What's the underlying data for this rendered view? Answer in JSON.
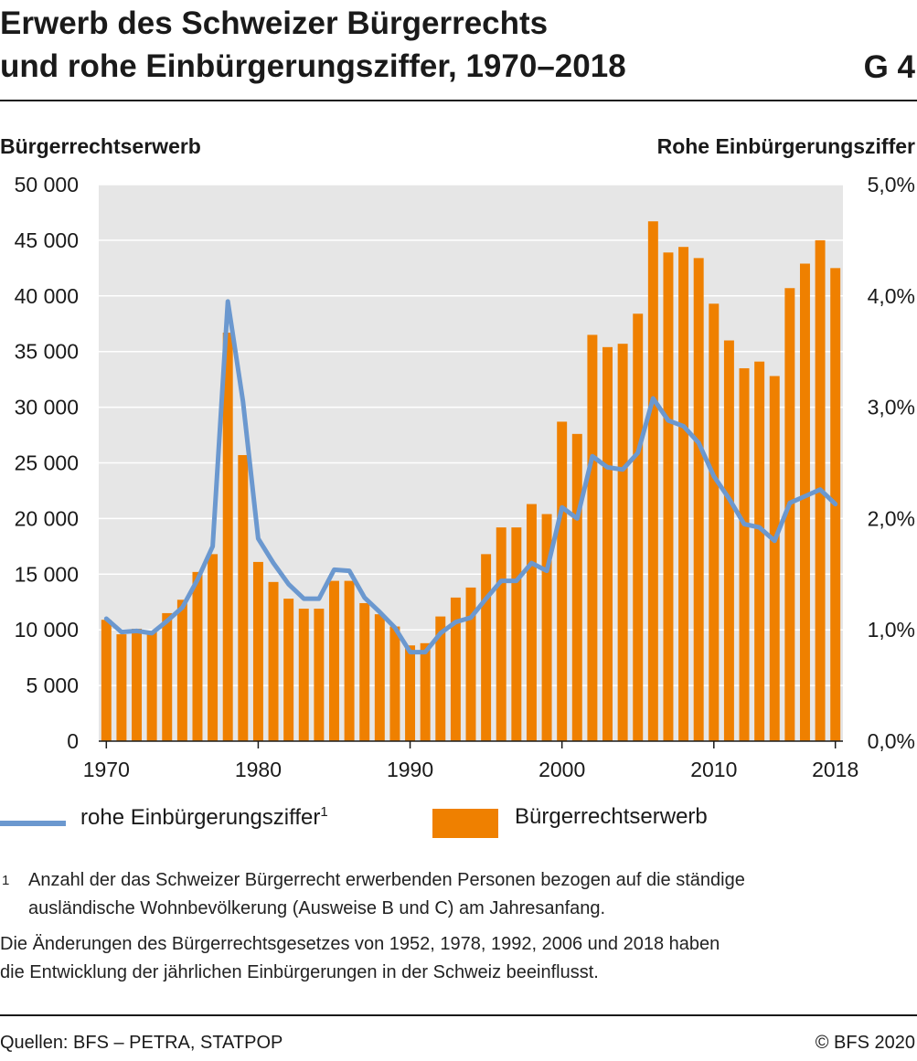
{
  "header": {
    "title_line1": "Erwerb des Schweizer Bürgerrechts",
    "title_line2": "und rohe Einbürgerungsziffer, 1970–2018",
    "graphic_number": "G 4"
  },
  "colors": {
    "bar": "#ef8000",
    "line": "#6b98cf",
    "plot_bg": "#e6e6e6",
    "grid": "#ffffff"
  },
  "chart_data": {
    "type": "bar",
    "title": "Erwerb des Schweizer Bürgerrechts und rohe Einbürgerungsziffer, 1970–2018",
    "ylabel": "Bürgerrechtserwerb",
    "y2label": "Rohe Einbürgerungsziffer",
    "ylim": [
      0,
      50000
    ],
    "y2lim": [
      0,
      5.0
    ],
    "y_ticks": [
      "0",
      "5 000",
      "10 000",
      "15 000",
      "20 000",
      "25 000",
      "30 000",
      "35 000",
      "40 000",
      "45 000",
      "50 000"
    ],
    "y2_ticks": [
      "0,0%",
      "1,0%",
      "2,0%",
      "3,0%",
      "4,0%",
      "5,0%"
    ],
    "x_ticks": [
      "1970",
      "1980",
      "1990",
      "2000",
      "2010",
      "2018"
    ],
    "grid": true,
    "x": [
      1970,
      1971,
      1972,
      1973,
      1974,
      1975,
      1976,
      1977,
      1978,
      1979,
      1980,
      1981,
      1982,
      1983,
      1984,
      1985,
      1986,
      1987,
      1988,
      1989,
      1990,
      1991,
      1992,
      1993,
      1994,
      1995,
      1996,
      1997,
      1998,
      1999,
      2000,
      2001,
      2002,
      2003,
      2004,
      2005,
      2006,
      2007,
      2008,
      2009,
      2010,
      2011,
      2012,
      2013,
      2014,
      2015,
      2016,
      2017,
      2018
    ],
    "series": [
      {
        "name": "Bürgerrechtserwerb",
        "type": "bar",
        "axis": "left",
        "values": [
          10900,
          9600,
          10100,
          9900,
          11500,
          12700,
          15200,
          16800,
          36700,
          25700,
          16100,
          14300,
          12800,
          11900,
          11900,
          14400,
          14400,
          12400,
          11400,
          10300,
          8600,
          8800,
          11200,
          12900,
          13800,
          16800,
          19200,
          19200,
          21300,
          20400,
          28700,
          27600,
          36500,
          35400,
          35700,
          38400,
          46700,
          43900,
          44400,
          43400,
          39300,
          36000,
          33500,
          34100,
          32800,
          40700,
          42900,
          45000,
          42500
        ]
      },
      {
        "name": "rohe Einbürgerungsziffer",
        "type": "line",
        "axis": "right",
        "values": [
          1.1,
          0.98,
          0.99,
          0.97,
          1.08,
          1.2,
          1.45,
          1.75,
          3.95,
          3.05,
          1.82,
          1.6,
          1.41,
          1.28,
          1.28,
          1.54,
          1.53,
          1.29,
          1.16,
          1.02,
          0.8,
          0.8,
          0.97,
          1.07,
          1.11,
          1.28,
          1.44,
          1.44,
          1.6,
          1.53,
          2.1,
          2.0,
          2.56,
          2.46,
          2.44,
          2.59,
          3.08,
          2.88,
          2.83,
          2.68,
          2.38,
          2.18,
          1.95,
          1.92,
          1.8,
          2.14,
          2.2,
          2.26,
          2.13
        ]
      }
    ],
    "legend_position": "bottom-left"
  },
  "legend": {
    "line_label": "rohe Einbürgerungsziffer",
    "line_sup": "1",
    "bar_label": "Bürgerrechtserwerb"
  },
  "footnotes": {
    "fn_mark": "1",
    "fn_line1": "Anzahl der das Schweizer Bürgerrecht erwerbenden Personen bezogen auf die ständige",
    "fn_line2": "ausländische Wohnbevölkerung (Ausweise B und C) am Jahresanfang.",
    "note_line1": "Die Änderungen des Bürgerrechtsgesetzes von 1952, 1978, 1992, 2006 und 2018 haben",
    "note_line2": "die Entwicklung der jährlichen Einbürgerungen in der Schweiz beeinflusst."
  },
  "source": {
    "left": "Quellen: BFS – PETRA, STATPOP",
    "right": "© BFS 2020"
  }
}
